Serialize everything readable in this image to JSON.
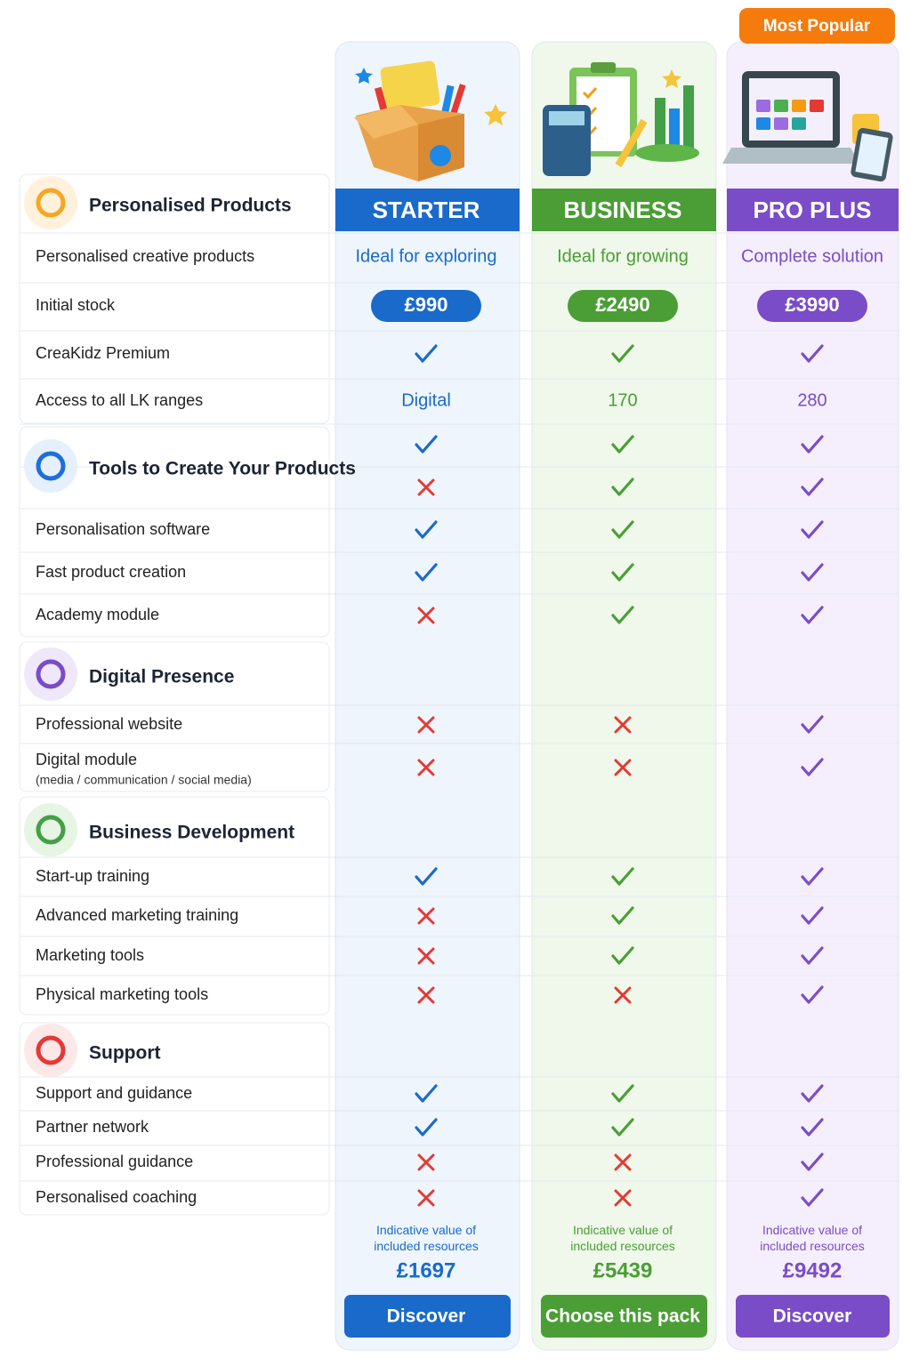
{
  "badge": "Most Popular",
  "plans": [
    {
      "name": "STARTER",
      "tagline": "Ideal for exploring",
      "price": "£990",
      "value_note": "Indicative value of included resources",
      "value": "£1697",
      "cta": "Discover",
      "color": "#1a6acb",
      "tint": "#eef5fd"
    },
    {
      "name": "BUSINESS",
      "tagline": "Ideal for growing",
      "price": "£2490",
      "value_note": "Indicative value of included resources",
      "value": "£5439",
      "cta": "Choose this pack",
      "color": "#4a9e35",
      "tint": "#eff8ea"
    },
    {
      "name": "PRO PLUS",
      "tagline": "Complete solution",
      "price": "£3990",
      "value_note": "Indicative value of included resources",
      "value": "£9492",
      "cta": "Discover",
      "color": "#7a4cc8",
      "tint": "#f5effd"
    }
  ],
  "sections": [
    {
      "title": "Personalised Products",
      "rows": [
        {
          "label": "Personalised creative products"
        },
        {
          "label": "Initial stock"
        },
        {
          "label": "CreaKidz Premium",
          "cells": [
            true,
            true,
            true
          ]
        },
        {
          "label": "Access to all LK ranges",
          "cells": [
            "Digital",
            170,
            280
          ]
        }
      ]
    },
    {
      "title": "Tools to Create Your Products",
      "rows": [
        {
          "cells": [
            true,
            true,
            true
          ]
        },
        {
          "cells": [
            false,
            true,
            true
          ]
        },
        {
          "label": "Personalisation software",
          "cells": [
            true,
            true,
            true
          ]
        },
        {
          "label": "Fast product creation",
          "cells": [
            true,
            true,
            true
          ]
        },
        {
          "label": "Academy module",
          "cells": [
            false,
            true,
            true
          ]
        }
      ]
    },
    {
      "title": "Digital Presence",
      "rows": [
        {
          "label": "Professional website",
          "cells": [
            false,
            false,
            true
          ]
        },
        {
          "label": "Digital module",
          "sublabel": "(media / communication / social media)",
          "cells": [
            false,
            false,
            true
          ]
        }
      ]
    },
    {
      "title": "Business Development",
      "rows": [
        {
          "label": "Start-up training",
          "cells": [
            true,
            true,
            true
          ]
        },
        {
          "label": "Advanced marketing training",
          "cells": [
            false,
            true,
            true
          ]
        },
        {
          "label": "Marketing tools",
          "cells": [
            false,
            true,
            true
          ]
        },
        {
          "label": "Physical marketing tools",
          "cells": [
            false,
            false,
            true
          ]
        }
      ]
    },
    {
      "title": "Support",
      "rows": [
        {
          "label": "Support and guidance",
          "cells": [
            true,
            true,
            true
          ]
        },
        {
          "label": "Partner network",
          "cells": [
            true,
            true,
            true
          ]
        },
        {
          "label": "Professional guidance",
          "cells": [
            false,
            false,
            true
          ]
        },
        {
          "label": "Personalised coaching",
          "cells": [
            false,
            false,
            true
          ]
        }
      ]
    }
  ]
}
